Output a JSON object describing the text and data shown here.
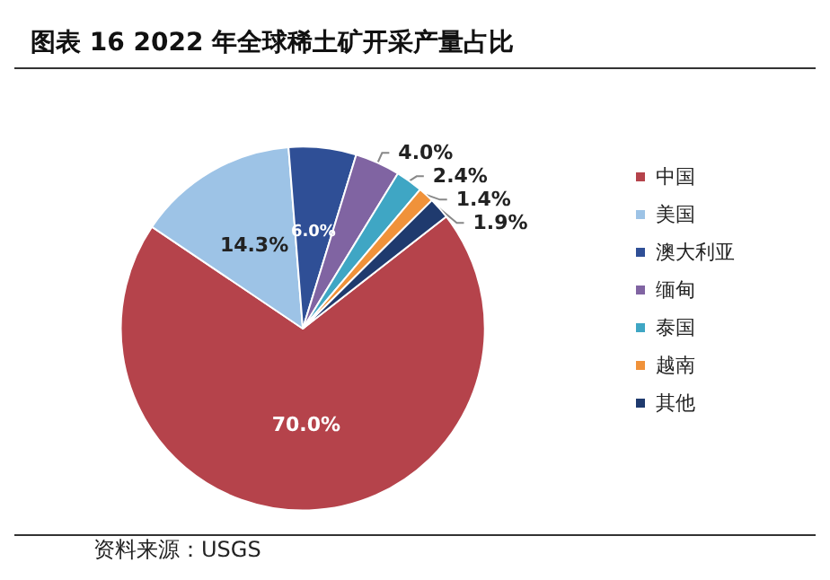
{
  "chart_data": {
    "type": "pie",
    "title": "图表 16 2022 年全球稀土矿开采产量占比",
    "categories": [
      "中国",
      "美国",
      "澳大利亚",
      "缅甸",
      "泰国",
      "越南",
      "其他"
    ],
    "values": [
      70.0,
      14.3,
      6.0,
      4.0,
      2.4,
      1.4,
      1.9
    ],
    "value_labels": [
      "70.0%",
      "14.3%",
      "6.0%",
      "4.0%",
      "2.4%",
      "1.4%",
      "1.9%"
    ],
    "colors": [
      "#b5434b",
      "#9dc3e6",
      "#2f4f96",
      "#8064a2",
      "#3fa6c4",
      "#f0923a",
      "#1f3a6e"
    ],
    "legend": "right",
    "annotations": [
      "资料来源：USGS"
    ]
  }
}
